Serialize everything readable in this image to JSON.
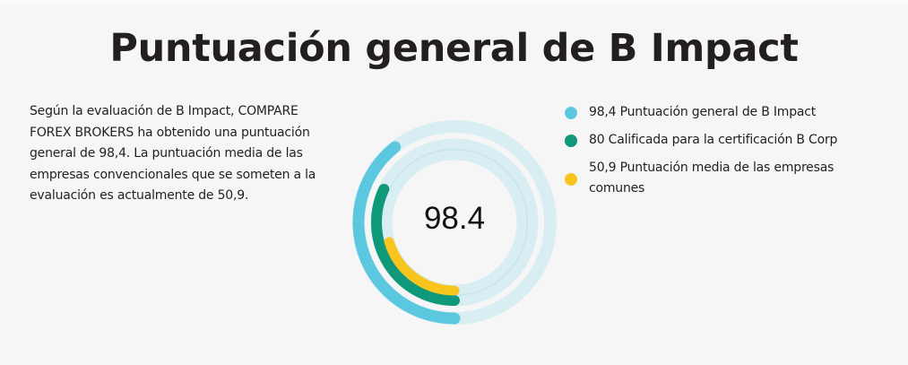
{
  "title": "Puntuación general de B Impact",
  "description": "Según la evaluación de B Impact, COMPARE FOREX BROKERS ha obtenido una puntuación general de 98,4. La puntuación media de las empresas convencionales que se someten a la evaluación es actualmente de 50,9.",
  "center_value": "98.4",
  "legend": [
    {
      "label": "98,4 Puntuación general de B Impact",
      "color": "#5bc8e0"
    },
    {
      "label": "80 Calificada para la certificación B Corp",
      "color": "#10987a"
    },
    {
      "label": "50,9 Puntuación media de las empresas comunes",
      "color": "#f7c51e"
    }
  ],
  "colors": {
    "background": "#f6f6f6",
    "track": "#d8eef3",
    "track_line": "#c4e6ec",
    "overall": "#5bc8e0",
    "certification": "#10987a",
    "average": "#f7c51e"
  },
  "chart_data": {
    "type": "radial-bar",
    "title": "Puntuación general de B Impact",
    "center_label": "98.4",
    "scale_max": 250,
    "start_angle": "bottom (6 o'clock), clockwise",
    "series": [
      {
        "name": "Puntuación general de B Impact",
        "value": 98.4,
        "color": "#5bc8e0",
        "ring": "outer"
      },
      {
        "name": "Calificada para la certificación B Corp",
        "value": 80,
        "color": "#10987a",
        "ring": "middle"
      },
      {
        "name": "Puntuación media de las empresas comunes",
        "value": 50.9,
        "color": "#f7c51e",
        "ring": "inner"
      }
    ],
    "legend_position": "right"
  }
}
